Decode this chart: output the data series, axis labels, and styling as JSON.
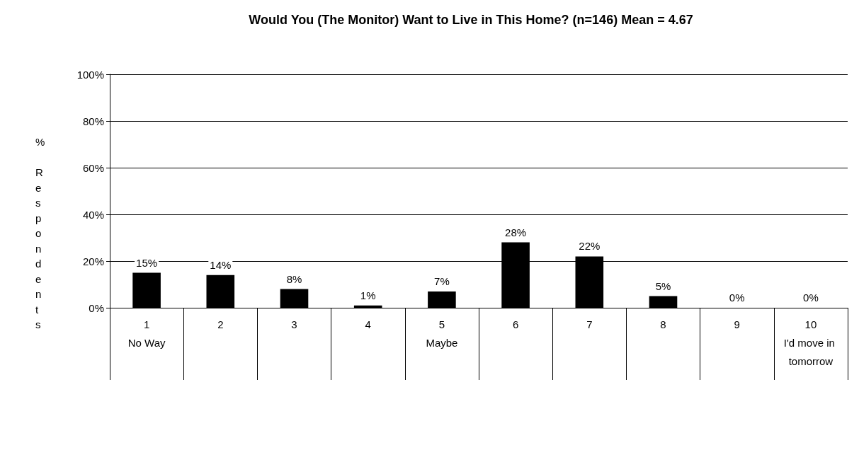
{
  "chart_data": {
    "type": "bar",
    "title": "Would You (The Monitor) Want to Live in This Home? (n=146) Mean = 4.67",
    "ylabel": "% Respondents",
    "categories": [
      "1\nNo Way",
      "2",
      "3",
      "4",
      "5\nMaybe",
      "6",
      "7",
      "8",
      "9",
      "10\nI'd move in tomorrow"
    ],
    "values": [
      15,
      14,
      8,
      1,
      7,
      28,
      22,
      5,
      0,
      0
    ],
    "value_labels": [
      "15%",
      "14%",
      "8%",
      "1%",
      "7%",
      "28%",
      "22%",
      "5%",
      "0%",
      "0%"
    ],
    "color": "#000000",
    "ylim": [
      0,
      100
    ],
    "yticks": [
      {
        "value": 0,
        "label": "0%"
      },
      {
        "value": 20,
        "label": "20%"
      },
      {
        "value": 40,
        "label": "40%"
      },
      {
        "value": 60,
        "label": "60%"
      },
      {
        "value": 80,
        "label": "80%"
      },
      {
        "value": 100,
        "label": "100%"
      }
    ],
    "grid": "y"
  }
}
